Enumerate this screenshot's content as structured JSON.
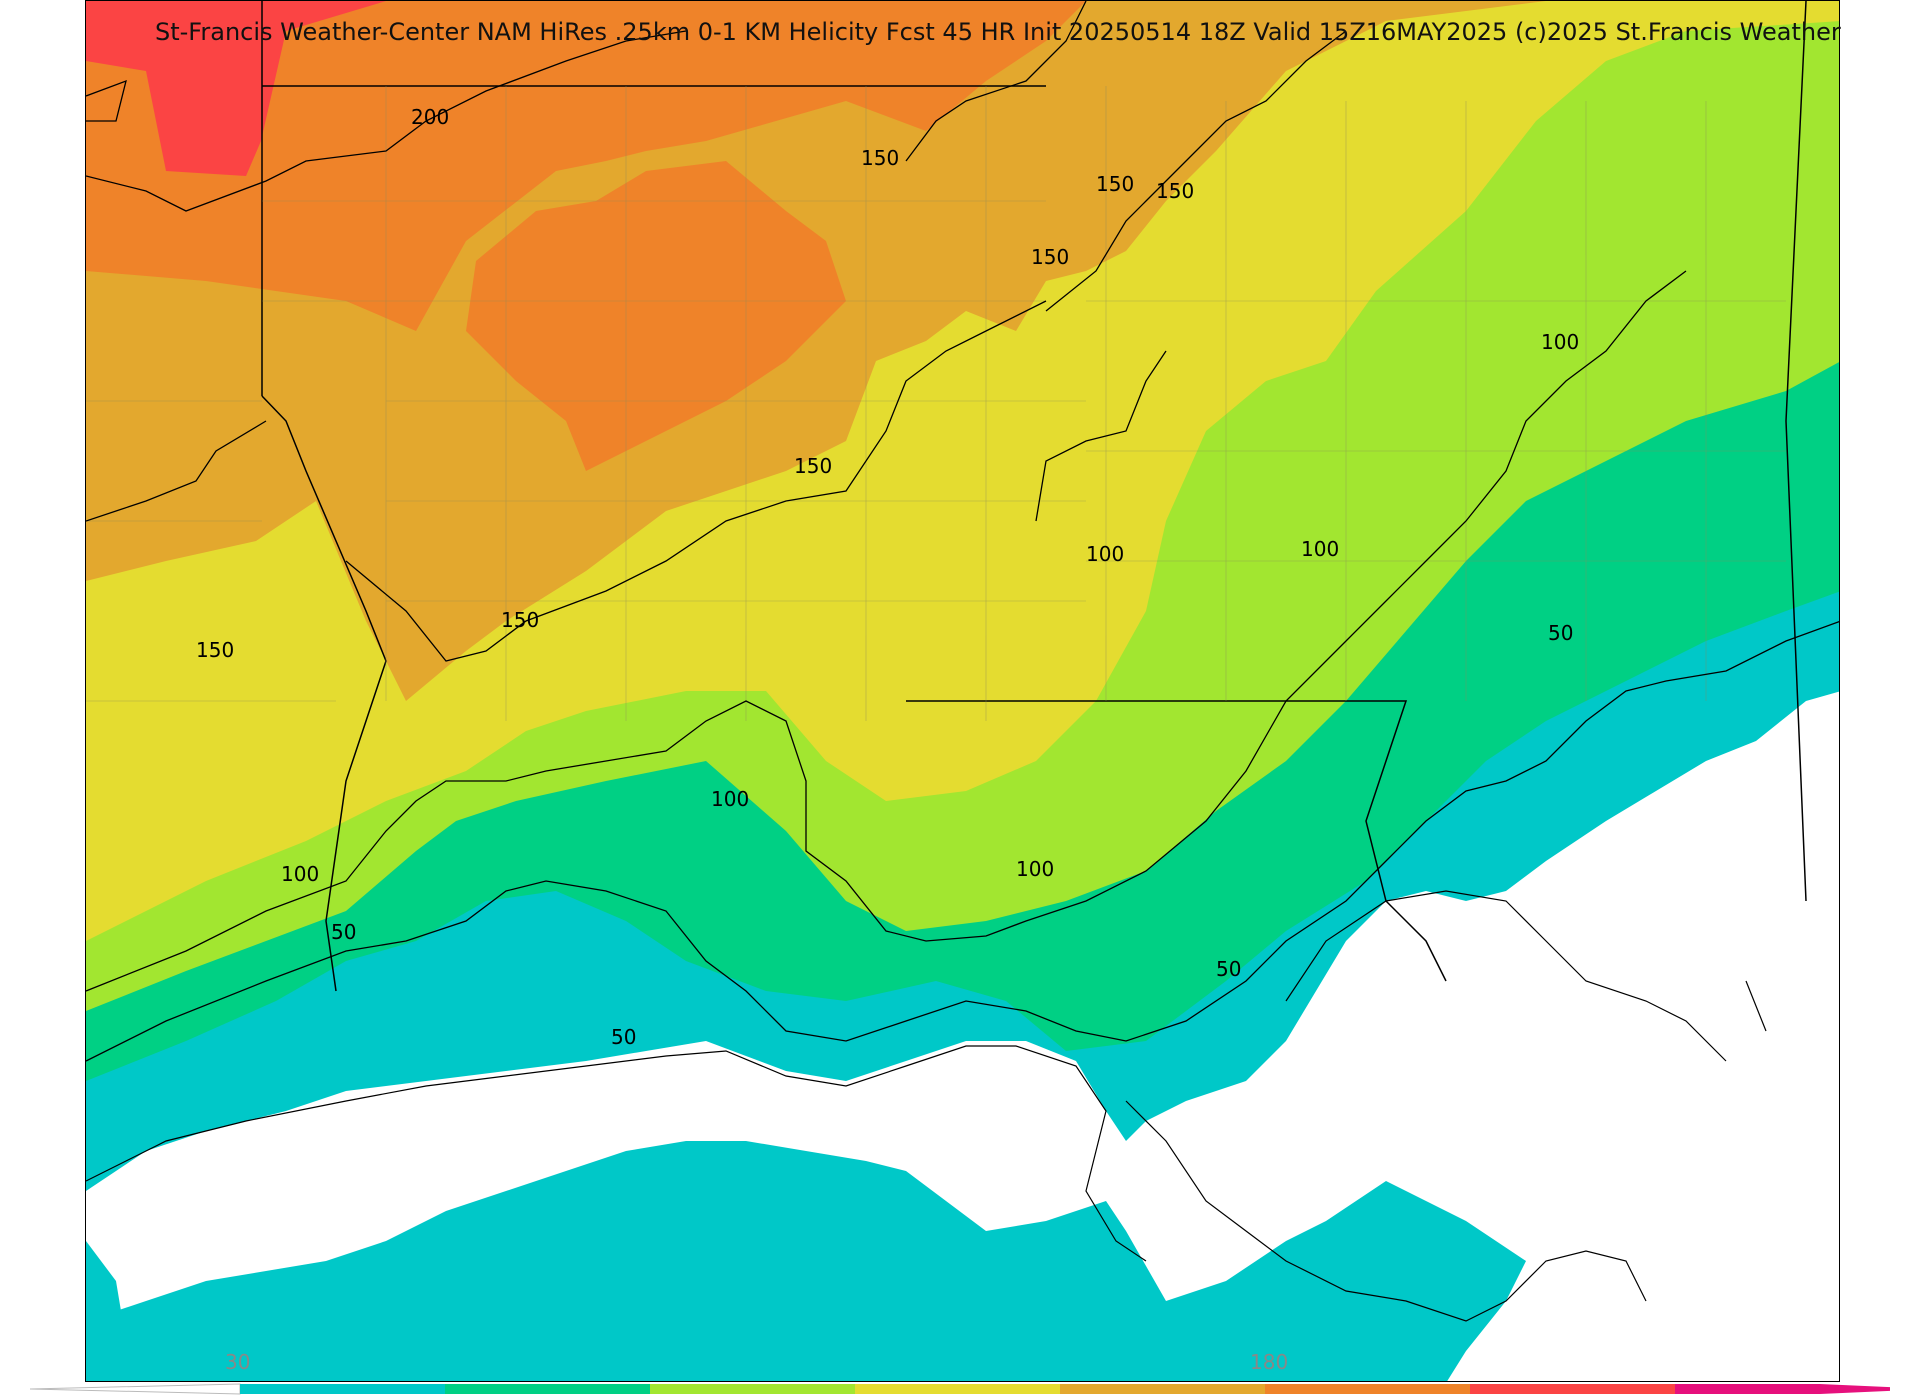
{
  "title": "St-Francis Weather-Center NAM HiRes .25km 0-1 KM Helicity Fcst 45 HR Init 20250514 18Z  Valid 15Z16MAY2025    (c)2025 St.Francis Weather",
  "colorbar": {
    "tick_labels": [
      "30",
      "180"
    ],
    "bins": [
      {
        "color": "#00c8c8"
      },
      {
        "color": "#00d084"
      },
      {
        "color": "#a2e630"
      },
      {
        "color": "#e4dc30"
      },
      {
        "color": "#e3a82e"
      },
      {
        "color": "#ef8329"
      },
      {
        "color": "#fb4444"
      },
      {
        "color": "#e6107c"
      }
    ]
  },
  "contour_labels": [
    "200",
    "150",
    "150",
    "150",
    "150",
    "150",
    "150",
    "150",
    "100",
    "100",
    "100",
    "100",
    "100",
    "100",
    "50",
    "50",
    "50",
    "50"
  ],
  "colors": {
    "gulf": "#ffffff",
    "border": "#000000",
    "county": "#8a8a5a"
  }
}
